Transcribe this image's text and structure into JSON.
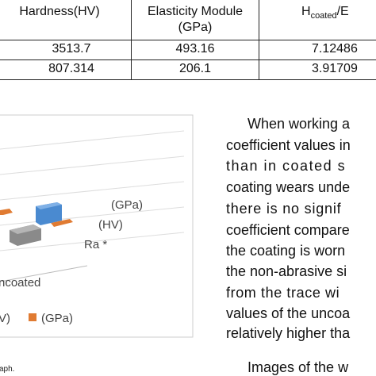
{
  "table": {
    "header": [
      [
        "Hardness(HV)"
      ],
      [
        "Elasticity Module",
        "(GPa)"
      ],
      {
        "main": "H",
        "sub": "coated",
        "rest": "/E"
      }
    ],
    "rows": [
      [
        "3513.7",
        "493.16",
        "7.12486"
      ],
      [
        "807.314",
        "206.1",
        "3.91709"
      ]
    ]
  },
  "chart": {
    "labels": [
      "(GPa)",
      "(HV)",
      "Ra *",
      "ncoated"
    ],
    "legend": [
      "V)",
      "(GPa)"
    ],
    "caption": "aph."
  },
  "text": {
    "lines": [
      "When working a",
      "coefficient values in",
      "than in coated s",
      "coating wears unde",
      "there is no signif",
      "coefficient compare",
      "the coating is worn",
      "the non-abrasive si",
      "from the trace wi",
      "values of the uncoa",
      "relatively higher tha",
      "Images of the w"
    ]
  }
}
